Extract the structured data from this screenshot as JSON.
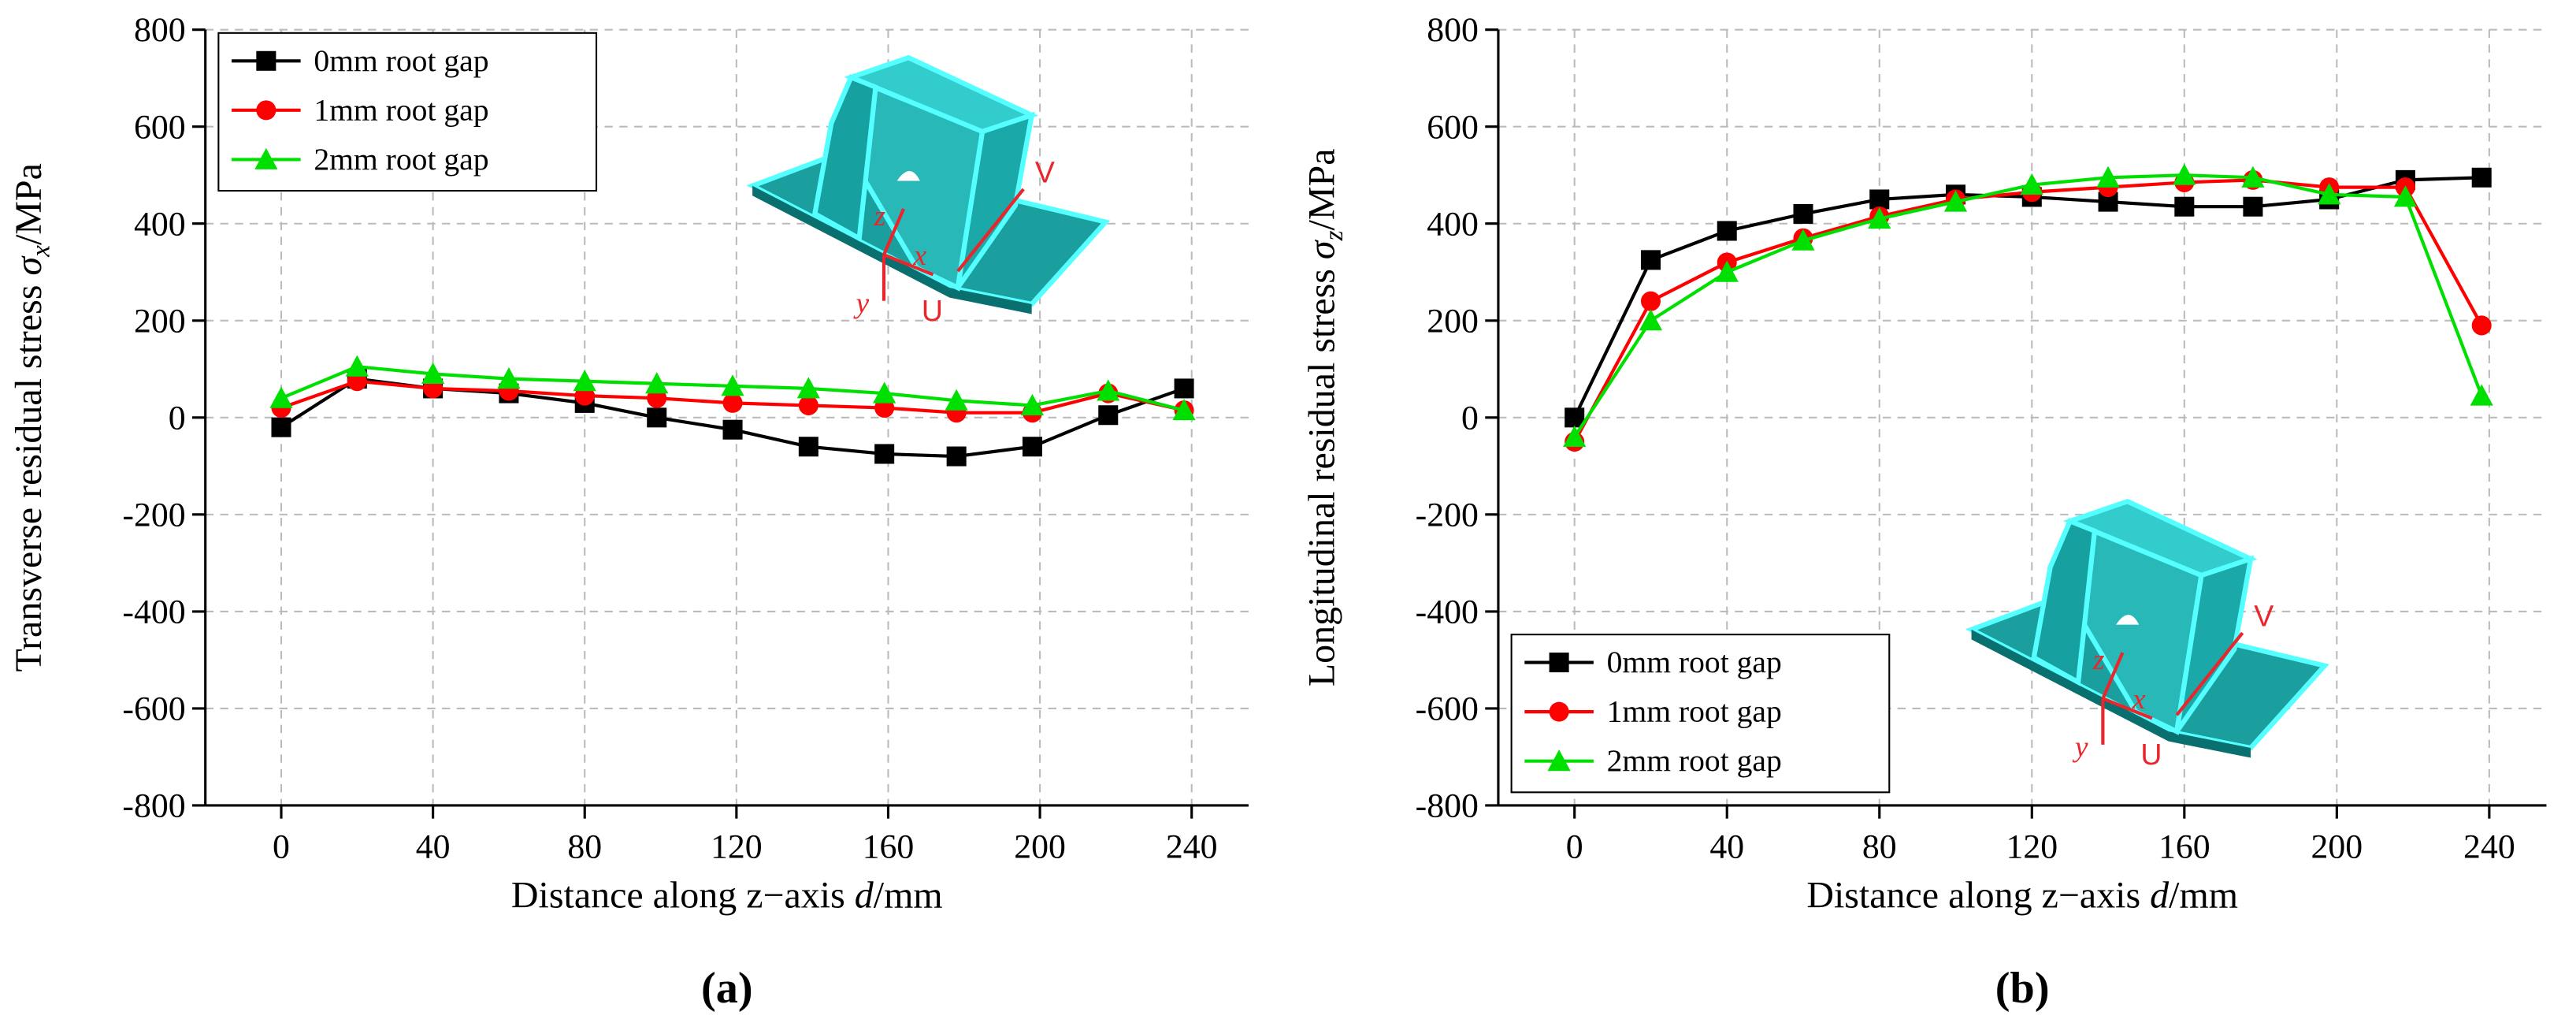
{
  "chart_data": [
    {
      "type": "line",
      "panel_label": "(a)",
      "x_label": {
        "text": "Distance along z−axis ",
        "symbol": "d",
        "unit": "/mm"
      },
      "y_label": {
        "text": "Transverse residual stress ",
        "symbol": "σ",
        "sub": "x",
        "unit": "/MPa"
      },
      "xlim": [
        -20,
        255
      ],
      "xticks": [
        0,
        40,
        80,
        120,
        160,
        200,
        240
      ],
      "ylim": [
        -800,
        800
      ],
      "yticks": [
        -800,
        -600,
        -400,
        -200,
        0,
        200,
        400,
        600,
        800
      ],
      "grid": true,
      "legend": "upper left",
      "inset_labels": {
        "v": "V",
        "u": "U",
        "z": "z",
        "x": "x",
        "y": "y"
      },
      "x": [
        0,
        20,
        40,
        60,
        80,
        99,
        119,
        139,
        159,
        178,
        198,
        218,
        238
      ],
      "series": [
        {
          "name": "0mm root gap",
          "color": "#000000",
          "marker": "square",
          "values": [
            -20,
            80,
            60,
            50,
            30,
            0,
            -25,
            -60,
            -75,
            -80,
            -60,
            5,
            60
          ]
        },
        {
          "name": "1mm root gap",
          "color": "#ff0000",
          "marker": "circle",
          "values": [
            20,
            75,
            60,
            55,
            45,
            40,
            30,
            25,
            20,
            10,
            10,
            50,
            15
          ]
        },
        {
          "name": "2mm root gap",
          "color": "#00e000",
          "marker": "triangle",
          "values": [
            40,
            105,
            90,
            80,
            75,
            70,
            65,
            60,
            50,
            35,
            25,
            55,
            15
          ]
        }
      ]
    },
    {
      "type": "line",
      "panel_label": "(b)",
      "x_label": {
        "text": "Distance along z−axis ",
        "symbol": "d",
        "unit": "/mm"
      },
      "y_label": {
        "text": "Longitudinal residual stress ",
        "symbol": "σ",
        "sub": "z",
        "unit": "/MPa"
      },
      "xlim": [
        -20,
        255
      ],
      "xticks": [
        0,
        40,
        80,
        120,
        160,
        200,
        240
      ],
      "ylim": [
        -800,
        800
      ],
      "yticks": [
        -800,
        -600,
        -400,
        -200,
        0,
        200,
        400,
        600,
        800
      ],
      "grid": true,
      "legend": "lower left",
      "inset_labels": {
        "v": "V",
        "u": "U",
        "z": "z",
        "x": "x",
        "y": "y"
      },
      "x": [
        0,
        20,
        40,
        60,
        80,
        100,
        120,
        140,
        160,
        178,
        198,
        218,
        238
      ],
      "series": [
        {
          "name": "0mm root gap",
          "color": "#000000",
          "marker": "square",
          "values": [
            0,
            325,
            385,
            420,
            450,
            460,
            455,
            445,
            435,
            435,
            450,
            490,
            495
          ]
        },
        {
          "name": "1mm root gap",
          "color": "#ff0000",
          "marker": "circle",
          "values": [
            -50,
            240,
            320,
            370,
            415,
            450,
            465,
            475,
            485,
            490,
            475,
            475,
            190
          ]
        },
        {
          "name": "2mm root gap",
          "color": "#00e000",
          "marker": "triangle",
          "values": [
            -40,
            200,
            300,
            365,
            410,
            445,
            480,
            495,
            500,
            495,
            460,
            455,
            45
          ]
        }
      ]
    }
  ]
}
